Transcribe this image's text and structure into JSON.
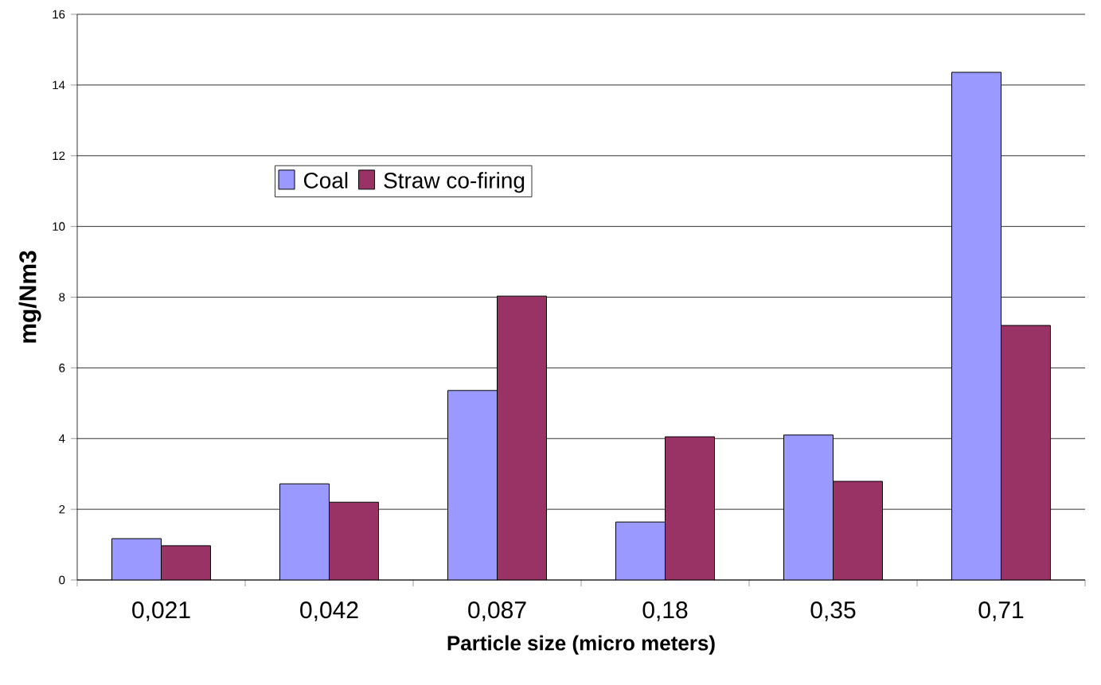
{
  "chart_data": {
    "type": "bar",
    "xlabel": "Particle size (micro meters)",
    "ylabel": "mg/Nm3",
    "categories": [
      "0,021",
      "0,042",
      "0,087",
      "0,18",
      "0,35",
      "0,71"
    ],
    "series": [
      {
        "name": "Coal",
        "color": "#9999ff",
        "values": [
          1.17,
          2.72,
          5.36,
          1.64,
          4.1,
          14.36
        ]
      },
      {
        "name": "Straw co-firing",
        "color": "#993366",
        "values": [
          0.97,
          2.2,
          8.03,
          4.05,
          2.79,
          7.2
        ]
      }
    ],
    "ylim": [
      0,
      16
    ],
    "yticks": [
      0,
      2,
      4,
      6,
      8,
      10,
      12,
      14,
      16
    ],
    "grid": "y",
    "legend": "top left"
  }
}
